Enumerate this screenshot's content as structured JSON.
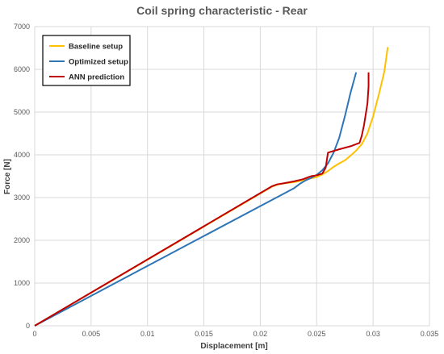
{
  "chart_data": {
    "type": "line",
    "title": "Coil spring characteristic - Rear",
    "xlabel": "Displacement [m]",
    "ylabel": "Force [N]",
    "xlim": [
      0,
      0.035
    ],
    "ylim": [
      0,
      7000
    ],
    "xticks": [
      0,
      0.005,
      0.01,
      0.015,
      0.02,
      0.025,
      0.03,
      0.035
    ],
    "xtick_labels": [
      "0",
      "0.005",
      "0.01",
      "0.015",
      "0.02",
      "0.025",
      "0.03",
      "0.035"
    ],
    "yticks": [
      0,
      1000,
      2000,
      3000,
      4000,
      5000,
      6000,
      7000
    ],
    "ytick_labels": [
      "0",
      "1000",
      "2000",
      "3000",
      "4000",
      "5000",
      "6000",
      "7000"
    ],
    "grid": true,
    "legend_position": "top-left",
    "series": [
      {
        "name": "Baseline setup",
        "color": "#FFC000",
        "x": [
          0,
          0.021,
          0.0215,
          0.022,
          0.023,
          0.024,
          0.025,
          0.0255,
          0.026,
          0.0265,
          0.027,
          0.0275,
          0.028,
          0.0285,
          0.029,
          0.0295,
          0.03,
          0.0305,
          0.031,
          0.0313
        ],
        "y": [
          0,
          3250,
          3300,
          3330,
          3360,
          3420,
          3480,
          3540,
          3620,
          3720,
          3800,
          3870,
          3980,
          4100,
          4250,
          4500,
          4900,
          5400,
          5950,
          6520
        ]
      },
      {
        "name": "Optimized setup",
        "color": "#2E75B6",
        "x": [
          0,
          0.023,
          0.0235,
          0.024,
          0.0245,
          0.025,
          0.0255,
          0.026,
          0.0265,
          0.027,
          0.0275,
          0.028,
          0.0285
        ],
        "y": [
          0,
          3220,
          3320,
          3400,
          3460,
          3530,
          3640,
          3800,
          4050,
          4400,
          4900,
          5450,
          5930
        ]
      },
      {
        "name": "ANN prediction",
        "color": "#C00000",
        "x": [
          0,
          0.021,
          0.0215,
          0.022,
          0.023,
          0.0238,
          0.0245,
          0.025,
          0.0255,
          0.0258,
          0.026,
          0.027,
          0.028,
          0.0288,
          0.029,
          0.0292,
          0.0295,
          0.0296,
          0.0296
        ],
        "y": [
          0,
          3260,
          3310,
          3330,
          3380,
          3430,
          3500,
          3520,
          3560,
          3700,
          4050,
          4130,
          4200,
          4280,
          4450,
          4700,
          5200,
          5600,
          5930
        ]
      }
    ]
  }
}
